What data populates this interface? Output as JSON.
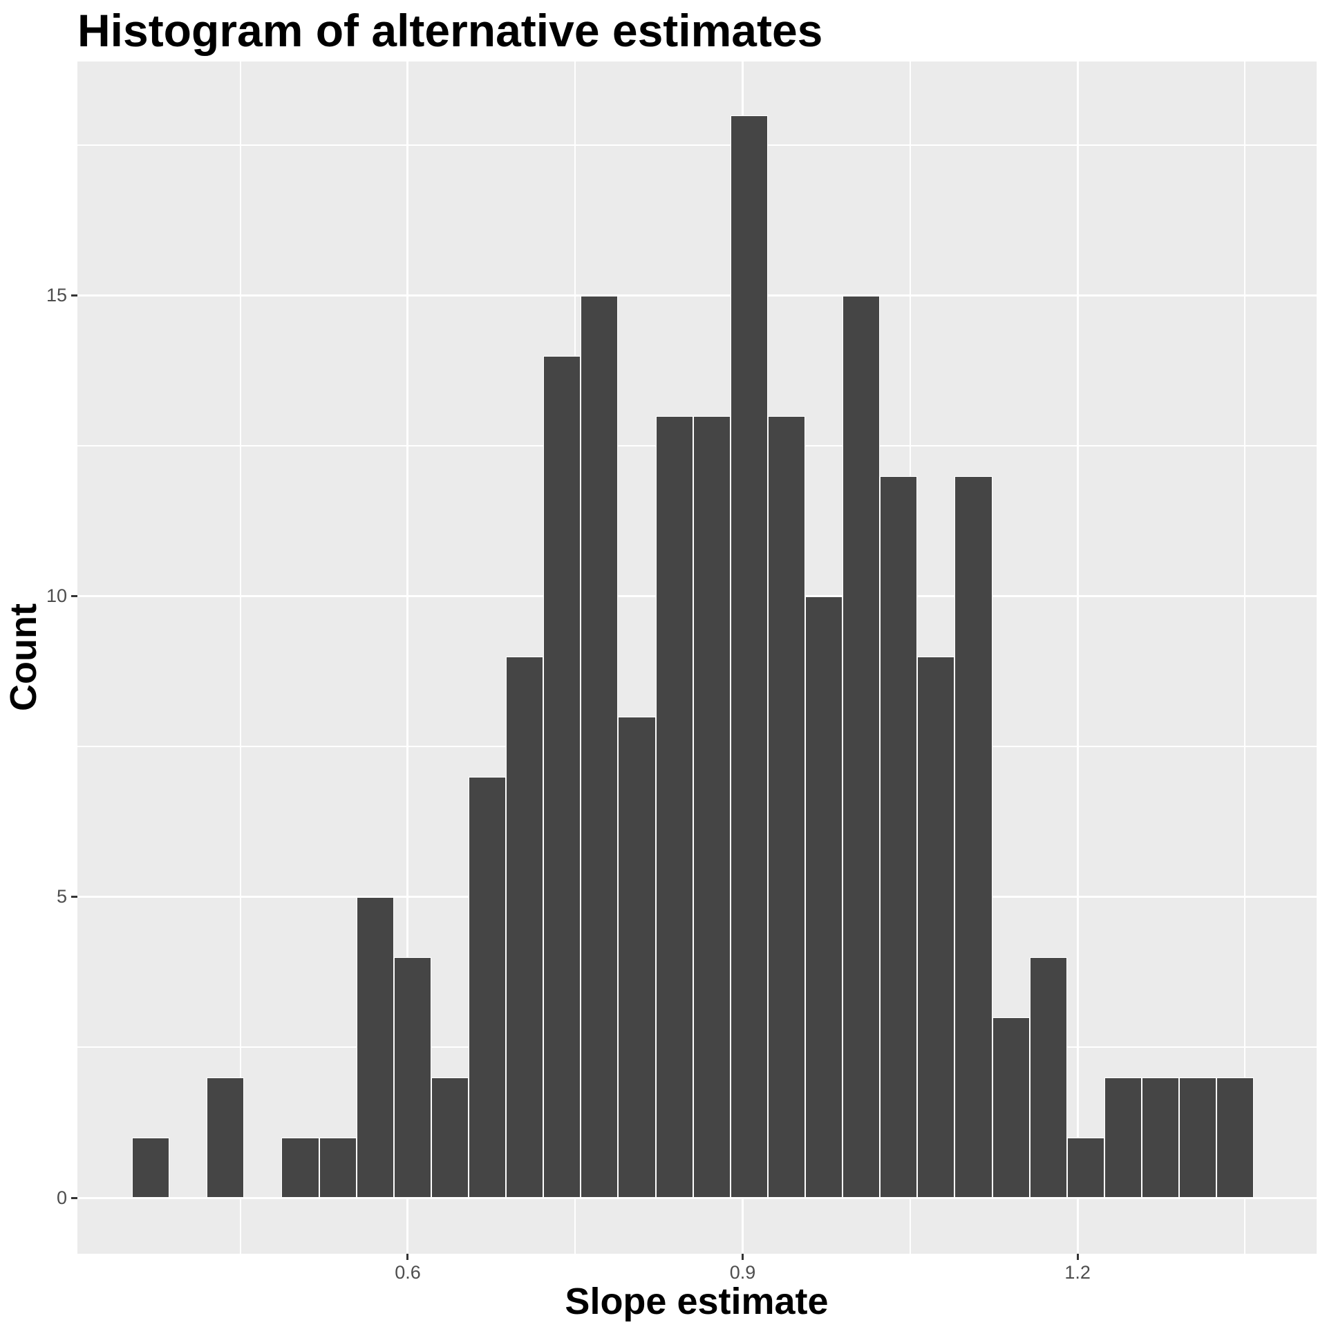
{
  "title": "Histogram of alternative estimates",
  "chart_data": {
    "type": "bar",
    "subtype": "histogram",
    "title": "Histogram of alternative estimates",
    "xlabel": "Slope estimate",
    "ylabel": "Count",
    "bin_start": 0.353,
    "bin_width": 0.0335,
    "counts": [
      1,
      0,
      2,
      0,
      1,
      1,
      5,
      4,
      2,
      7,
      9,
      14,
      15,
      8,
      13,
      13,
      18,
      13,
      10,
      15,
      12,
      9,
      12,
      3,
      4,
      1,
      2,
      2,
      2,
      2
    ],
    "total_n": 200,
    "x_ticks": [
      {
        "value": 0.6,
        "label": "0.6"
      },
      {
        "value": 0.9,
        "label": "0.9"
      },
      {
        "value": 1.2,
        "label": "1.2"
      }
    ],
    "y_ticks": [
      {
        "value": 0,
        "label": "0"
      },
      {
        "value": 5,
        "label": "5"
      },
      {
        "value": 10,
        "label": "10"
      },
      {
        "value": 15,
        "label": "15"
      }
    ],
    "x_minor_gridlines": [
      0.45,
      0.75,
      1.05,
      1.35
    ],
    "y_minor_gridlines": [
      2.5,
      7.5,
      12.5,
      17.5
    ],
    "x_domain": [
      0.3041,
      1.4141
    ],
    "y_domain": [
      -0.931,
      18.896
    ],
    "grid": true,
    "legend": false
  },
  "colors": {
    "bar_fill": "#454545",
    "bar_border": "#FFFFFF",
    "panel_bg": "#EBEBEB",
    "gridline": "#FFFFFF",
    "tick_label": "#4D4D4D",
    "tick_mark": "#333333",
    "title": "#000000"
  }
}
